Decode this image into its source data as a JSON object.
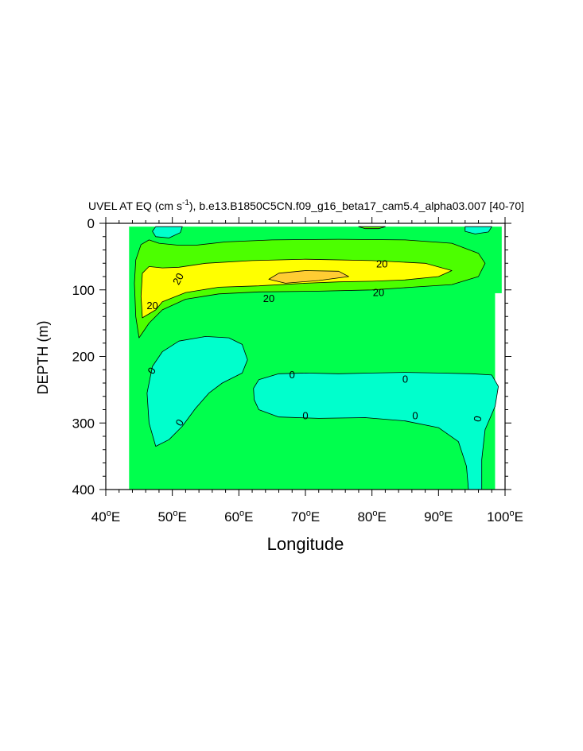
{
  "chart_data": {
    "type": "filled-contour",
    "title": {
      "prefix": "UVEL AT EQ (cm s",
      "superscript": "-1",
      "suffix": "), b.e13.B1850C5CN.f09_g16_beta17_cam5.4_alpha03.007 [40-70]"
    },
    "xlabel": "Longitude",
    "ylabel": "DEPTH (m)",
    "xlim": [
      40,
      100
    ],
    "ylim": [
      0,
      400
    ],
    "y_reversed": true,
    "x_ticks": [
      {
        "value": 40,
        "num": "40",
        "deg": "o",
        "dir": "E"
      },
      {
        "value": 50,
        "num": "50",
        "deg": "o",
        "dir": "E"
      },
      {
        "value": 60,
        "num": "60",
        "deg": "o",
        "dir": "E"
      },
      {
        "value": 70,
        "num": "70",
        "deg": "o",
        "dir": "E"
      },
      {
        "value": 80,
        "num": "80",
        "deg": "o",
        "dir": "E"
      },
      {
        "value": 90,
        "num": "90",
        "deg": "o",
        "dir": "E"
      },
      {
        "value": 100,
        "num": "100",
        "deg": "o",
        "dir": "E"
      }
    ],
    "y_ticks": [
      {
        "value": 0,
        "label": "0"
      },
      {
        "value": 100,
        "label": "100"
      },
      {
        "value": 200,
        "label": "200"
      },
      {
        "value": 300,
        "label": "300"
      },
      {
        "value": 400,
        "label": "400"
      }
    ],
    "fill_colors": {
      "negative": "#00ffcc",
      "zero_to_20": "#00ff4d",
      "band_20": "#4cff00",
      "band_40": "#ffff00",
      "band_60": "#ffcc33"
    },
    "data_extent": {
      "x": [
        43.5,
        99.5
      ],
      "depth": [
        5,
        400
      ]
    },
    "regions": [
      {
        "name": "westward-deep-west",
        "fill": "negative",
        "points": [
          [
            47.5,
            335
          ],
          [
            46.5,
            300
          ],
          [
            46.2,
            255
          ],
          [
            47,
            215
          ],
          [
            48.5,
            193
          ],
          [
            51,
            177
          ],
          [
            55,
            170
          ],
          [
            58.5,
            172
          ],
          [
            60.5,
            182
          ],
          [
            61.3,
            205
          ],
          [
            60.5,
            225
          ],
          [
            57.5,
            240
          ],
          [
            55.5,
            255
          ],
          [
            53.5,
            278
          ],
          [
            51.5,
            305
          ],
          [
            49.5,
            325
          ]
        ]
      },
      {
        "name": "westward-deep-east",
        "fill": "negative",
        "points": [
          [
            62.2,
            248
          ],
          [
            63,
            235
          ],
          [
            66,
            226
          ],
          [
            70,
            225
          ],
          [
            75,
            226
          ],
          [
            80,
            225
          ],
          [
            85,
            224
          ],
          [
            90,
            225
          ],
          [
            95,
            226
          ],
          [
            98,
            228
          ],
          [
            99,
            245
          ],
          [
            98.5,
            275
          ],
          [
            97,
            310
          ],
          [
            96.5,
            355
          ],
          [
            96.5,
            400
          ],
          [
            94.5,
            400
          ],
          [
            94.2,
            365
          ],
          [
            93,
            328
          ],
          [
            90,
            307
          ],
          [
            85,
            297
          ],
          [
            79,
            292
          ],
          [
            72,
            293
          ],
          [
            66,
            291
          ],
          [
            63,
            280
          ],
          [
            62.3,
            265
          ]
        ]
      },
      {
        "name": "westward-surface-west",
        "fill": "negative",
        "points": [
          [
            47.5,
            5
          ],
          [
            51.5,
            5
          ],
          [
            51.2,
            14
          ],
          [
            49.5,
            22
          ],
          [
            47.5,
            20
          ],
          [
            47,
            12
          ]
        ]
      },
      {
        "name": "westward-surface-east",
        "fill": "negative",
        "points": [
          [
            94,
            5
          ],
          [
            98,
            5
          ],
          [
            97.5,
            13
          ],
          [
            95.5,
            16
          ],
          [
            94,
            12
          ]
        ]
      },
      {
        "name": "eastward-band-20",
        "fill": "band_20",
        "points": [
          [
            45,
            172
          ],
          [
            44.5,
            140
          ],
          [
            44.3,
            90
          ],
          [
            44.5,
            55
          ],
          [
            45.3,
            32
          ],
          [
            46.5,
            25
          ],
          [
            48,
            30
          ],
          [
            51,
            33
          ],
          [
            53.5,
            33
          ],
          [
            58,
            28
          ],
          [
            65,
            25
          ],
          [
            75,
            24
          ],
          [
            85,
            25
          ],
          [
            92,
            30
          ],
          [
            96,
            45
          ],
          [
            97,
            60
          ],
          [
            96,
            80
          ],
          [
            92,
            92
          ],
          [
            86,
            96
          ],
          [
            80,
            100
          ],
          [
            72,
            102
          ],
          [
            63,
            103
          ],
          [
            57,
            106
          ],
          [
            52,
            114
          ],
          [
            48.5,
            130
          ],
          [
            46.5,
            150
          ]
        ]
      },
      {
        "name": "eastward-band-40",
        "fill": "band_40",
        "points": [
          [
            45.5,
            142
          ],
          [
            45.3,
            110
          ],
          [
            45.5,
            75
          ],
          [
            46.5,
            65
          ],
          [
            48.5,
            67
          ],
          [
            51,
            66
          ],
          [
            55,
            60
          ],
          [
            62,
            56
          ],
          [
            70,
            54
          ],
          [
            80,
            56
          ],
          [
            88,
            60
          ],
          [
            92,
            71
          ],
          [
            90,
            80
          ],
          [
            85,
            85
          ],
          [
            80,
            87
          ],
          [
            75,
            88
          ],
          [
            70,
            90
          ],
          [
            63,
            94
          ],
          [
            57,
            96
          ],
          [
            52,
            104
          ],
          [
            48.5,
            118
          ],
          [
            47.5,
            130
          ]
        ]
      },
      {
        "name": "eastward-core-60",
        "fill": "band_60",
        "points": [
          [
            64.5,
            84
          ],
          [
            66,
            75
          ],
          [
            70,
            71
          ],
          [
            75,
            72
          ],
          [
            76.5,
            80
          ],
          [
            72,
            86
          ],
          [
            67,
            90
          ]
        ]
      },
      {
        "name": "eastward-surface-sliver",
        "fill": "band_20",
        "points": [
          [
            78,
            5
          ],
          [
            82,
            5
          ],
          [
            81,
            8
          ],
          [
            79,
            8
          ]
        ]
      }
    ],
    "contour_labels": [
      {
        "text": "20",
        "x": 51,
        "y": 84,
        "rotate": -62
      },
      {
        "text": "20",
        "x": 47,
        "y": 125,
        "rotate": 0
      },
      {
        "text": "20",
        "x": 64.5,
        "y": 114,
        "rotate": 0
      },
      {
        "text": "20",
        "x": 81.5,
        "y": 62,
        "rotate": 0
      },
      {
        "text": "20",
        "x": 81,
        "y": 105,
        "rotate": 0
      },
      {
        "text": "0",
        "x": 47,
        "y": 222,
        "rotate": -60
      },
      {
        "text": "0",
        "x": 51.2,
        "y": 300,
        "rotate": -60
      },
      {
        "text": "0",
        "x": 68,
        "y": 229,
        "rotate": 0
      },
      {
        "text": "0",
        "x": 70,
        "y": 290,
        "rotate": 0
      },
      {
        "text": "0",
        "x": 85,
        "y": 235,
        "rotate": 0
      },
      {
        "text": "0",
        "x": 86.5,
        "y": 290,
        "rotate": 0
      },
      {
        "text": "0",
        "x": 96,
        "y": 294,
        "rotate": -80
      }
    ]
  }
}
